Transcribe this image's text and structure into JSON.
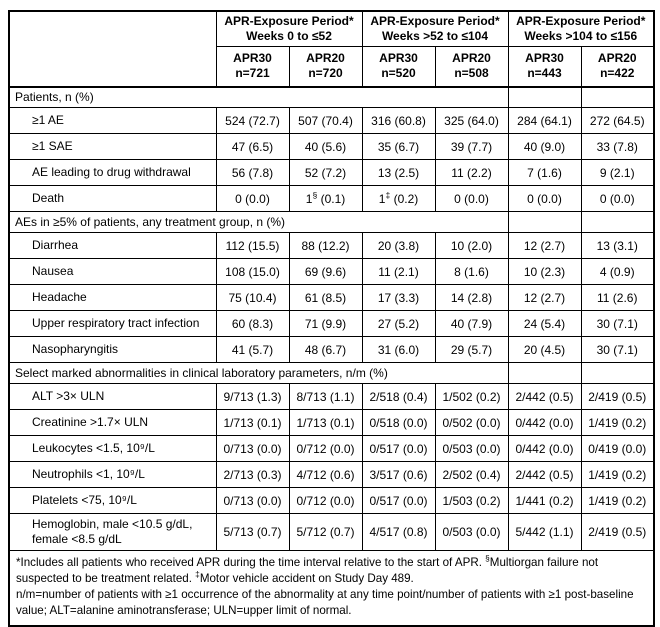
{
  "colors": {
    "border": "#000000",
    "text": "#000000",
    "background": "#ffffff"
  },
  "table": {
    "column_groups": [
      {
        "title": "APR-Exposure Period*",
        "subtitle": "Weeks 0 to ≤52"
      },
      {
        "title": "APR-Exposure Period*",
        "subtitle": "Weeks >52 to ≤104"
      },
      {
        "title": "APR-Exposure Period*",
        "subtitle": "Weeks >104 to ≤156"
      }
    ],
    "columns": [
      {
        "arm": "APR30",
        "n": "n=721"
      },
      {
        "arm": "APR20",
        "n": "n=720"
      },
      {
        "arm": "APR30",
        "n": "n=520"
      },
      {
        "arm": "APR20",
        "n": "n=508"
      },
      {
        "arm": "APR30",
        "n": "n=443"
      },
      {
        "arm": "APR20",
        "n": "n=422"
      }
    ],
    "sections": [
      {
        "header": "Patients, n (%)",
        "rows": [
          {
            "label": "≥1 AE",
            "values": [
              "524 (72.7)",
              "507 (70.4)",
              "316 (60.8)",
              "325 (64.0)",
              "284 (64.1)",
              "272 (64.5)"
            ]
          },
          {
            "label": "≥1 SAE",
            "values": [
              "47 (6.5)",
              "40 (5.6)",
              "35 (6.7)",
              "39 (7.7)",
              "40 (9.0)",
              "33 (7.8)"
            ]
          },
          {
            "label": "AE leading to drug withdrawal",
            "values": [
              "56 (7.8)",
              "52 (7.2)",
              "13 (2.5)",
              "11 (2.2)",
              "7 (1.6)",
              "9 (2.1)"
            ]
          },
          {
            "label": "Death",
            "values": [
              "0 (0.0)",
              "1§ (0.1)",
              "1‡ (0.2)",
              "0 (0.0)",
              "0 (0.0)",
              "0 (0.0)"
            ]
          }
        ]
      },
      {
        "header": "AEs in ≥5% of patients, any treatment group, n (%)",
        "rows": [
          {
            "label": "Diarrhea",
            "values": [
              "112 (15.5)",
              "88 (12.2)",
              "20 (3.8)",
              "10 (2.0)",
              "12 (2.7)",
              "13 (3.1)"
            ]
          },
          {
            "label": "Nausea",
            "values": [
              "108 (15.0)",
              "69 (9.6)",
              "11 (2.1)",
              "8 (1.6)",
              "10 (2.3)",
              "4 (0.9)"
            ]
          },
          {
            "label": "Headache",
            "values": [
              "75 (10.4)",
              "61 (8.5)",
              "17 (3.3)",
              "14 (2.8)",
              "12 (2.7)",
              "11 (2.6)"
            ]
          },
          {
            "label": "Upper respiratory tract infection",
            "values": [
              "60 (8.3)",
              "71 (9.9)",
              "27 (5.2)",
              "40 (7.9)",
              "24 (5.4)",
              "30 (7.1)"
            ]
          },
          {
            "label": "Nasopharyngitis",
            "values": [
              "41 (5.7)",
              "48 (6.7)",
              "31 (6.0)",
              "29 (5.7)",
              "20 (4.5)",
              "30 (7.1)"
            ]
          }
        ]
      },
      {
        "header": "Select marked abnormalities in clinical laboratory parameters, n/m (%)",
        "rows": [
          {
            "label": "ALT >3× ULN",
            "values": [
              "9/713 (1.3)",
              "8/713 (1.1)",
              "2/518 (0.4)",
              "1/502 (0.2)",
              "2/442 (0.5)",
              "2/419 (0.5)"
            ]
          },
          {
            "label": "Creatinine >1.7× ULN",
            "values": [
              "1/713 (0.1)",
              "1/713 (0.1)",
              "0/518 (0.0)",
              "0/502 (0.0)",
              "0/442 (0.0)",
              "1/419 (0.2)"
            ]
          },
          {
            "label": "Leukocytes <1.5, 10⁹/L",
            "values": [
              "0/713 (0.0)",
              "0/712 (0.0)",
              "0/517 (0.0)",
              "0/503 (0.0)",
              "0/442 (0.0)",
              "0/419 (0.0)"
            ]
          },
          {
            "label": "Neutrophils <1, 10⁹/L",
            "values": [
              "2/713 (0.3)",
              "4/712 (0.6)",
              "3/517 (0.6)",
              "2/502 (0.4)",
              "2/442 (0.5)",
              "1/419 (0.2)"
            ]
          },
          {
            "label": "Platelets <75, 10⁹/L",
            "values": [
              "0/713 (0.0)",
              "0/712 (0.0)",
              "0/517 (0.0)",
              "1/503 (0.2)",
              "1/441 (0.2)",
              "1/419 (0.2)"
            ]
          },
          {
            "label": "Hemoglobin, male <10.5 g/dL, female <8.5 g/dL",
            "values": [
              "5/713 (0.7)",
              "5/712 (0.7)",
              "4/517 (0.8)",
              "0/503 (0.0)",
              "5/442 (1.1)",
              "2/419 (0.5)"
            ]
          }
        ]
      }
    ],
    "footnotes": [
      "*Includes all patients who received APR during the time interval relative to the start of APR. §Multiorgan failure not suspected to be treatment related. ‡Motor vehicle accident on Study Day 489.",
      "n/m=number of patients with ≥1 occurrence of the abnormality at any time point/number of patients with ≥1 post-baseline value; ALT=alanine aminotransferase; ULN=upper limit of normal."
    ]
  }
}
